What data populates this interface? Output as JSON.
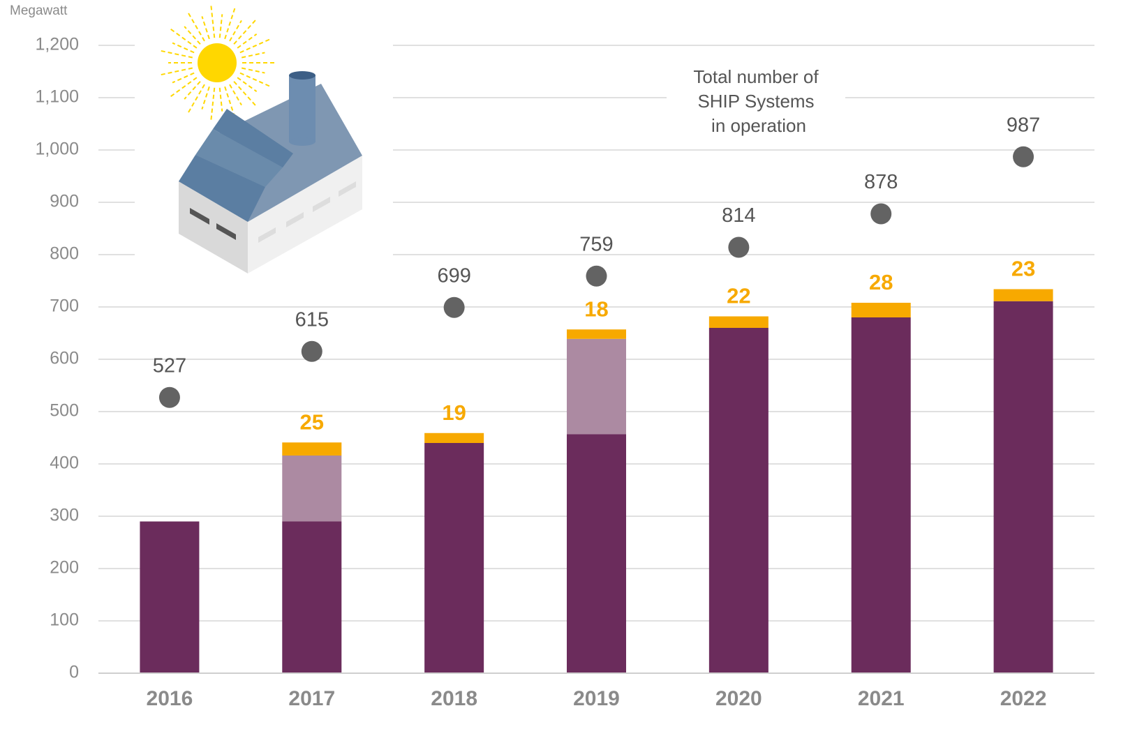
{
  "chart_data": {
    "type": "bar",
    "stacked": true,
    "y_label": "Megawatt",
    "categories": [
      "2016",
      "2017",
      "2018",
      "2019",
      "2020",
      "2021",
      "2022"
    ],
    "series": [
      {
        "color": "#6b2c5c",
        "values": [
          290,
          290,
          440,
          457,
          660,
          680,
          711
        ]
      },
      {
        "color": "#ac8aa2",
        "values": [
          null,
          126,
          null,
          182,
          null,
          null,
          null
        ]
      },
      {
        "color": "#f7a900",
        "values": [
          null,
          25,
          19,
          18,
          22,
          28,
          23
        ],
        "show_labels": true
      },
      {
        "type": "scatter",
        "color": "#636363",
        "values": [
          527,
          615,
          699,
          759,
          814,
          878,
          987
        ],
        "show_labels": true
      }
    ],
    "annotation": [
      "Total number of",
      "SHIP Systems",
      "in operation"
    ],
    "ylim": [
      0,
      1200
    ],
    "yticks": [
      0,
      100,
      200,
      300,
      400,
      500,
      600,
      700,
      800,
      900,
      {
        "value": 1000,
        "label": "1,000"
      },
      {
        "value": 1100,
        "label": "1,100"
      },
      {
        "value": 1200,
        "label": "1,200"
      }
    ],
    "grid": true
  }
}
